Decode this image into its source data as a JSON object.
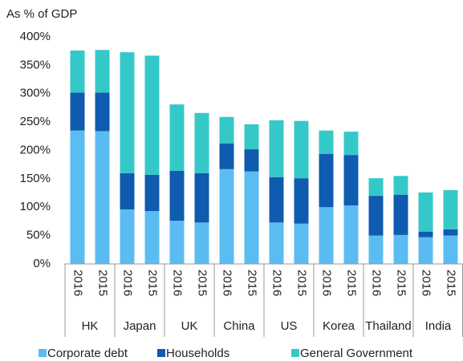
{
  "chart_data": {
    "type": "stacked_bar",
    "axis_label": "As % of GDP",
    "categories": [
      "2016",
      "2015",
      "2016",
      "2015",
      "2016",
      "2015",
      "2016",
      "2015",
      "2016",
      "2015",
      "2016",
      "2015",
      "2016",
      "2015",
      "2016",
      "2015"
    ],
    "groups": [
      "HK",
      "Japan",
      "UK",
      "China",
      "US",
      "Korea",
      "Thailand",
      "India"
    ],
    "series": [
      {
        "name": "Corporate debt",
        "color": "#5bbcf2",
        "values": [
          235,
          234,
          96,
          93,
          76,
          73,
          167,
          163,
          73,
          71,
          100,
          103,
          50,
          51,
          47,
          50
        ]
      },
      {
        "name": "Households",
        "color": "#0f5bb0",
        "values": [
          67,
          68,
          64,
          64,
          88,
          87,
          45,
          39,
          80,
          80,
          94,
          89,
          70,
          71,
          10,
          11
        ]
      },
      {
        "name": "General Government",
        "color": "#35c8c8",
        "values": [
          74,
          75,
          213,
          210,
          117,
          106,
          47,
          44,
          100,
          101,
          41,
          41,
          31,
          33,
          69,
          69
        ]
      }
    ],
    "ylim": [
      0,
      400
    ],
    "yticks": [
      {
        "value": 0,
        "label": "0%"
      },
      {
        "value": 50,
        "label": "50%"
      },
      {
        "value": 100,
        "label": "100%"
      },
      {
        "value": 150,
        "label": "150%"
      },
      {
        "value": 200,
        "label": "200%"
      },
      {
        "value": 250,
        "label": "250%"
      },
      {
        "value": 300,
        "label": "300%"
      },
      {
        "value": 350,
        "label": "350%"
      },
      {
        "value": 400,
        "label": "400%"
      }
    ],
    "grid": false,
    "legend": "bottom"
  }
}
